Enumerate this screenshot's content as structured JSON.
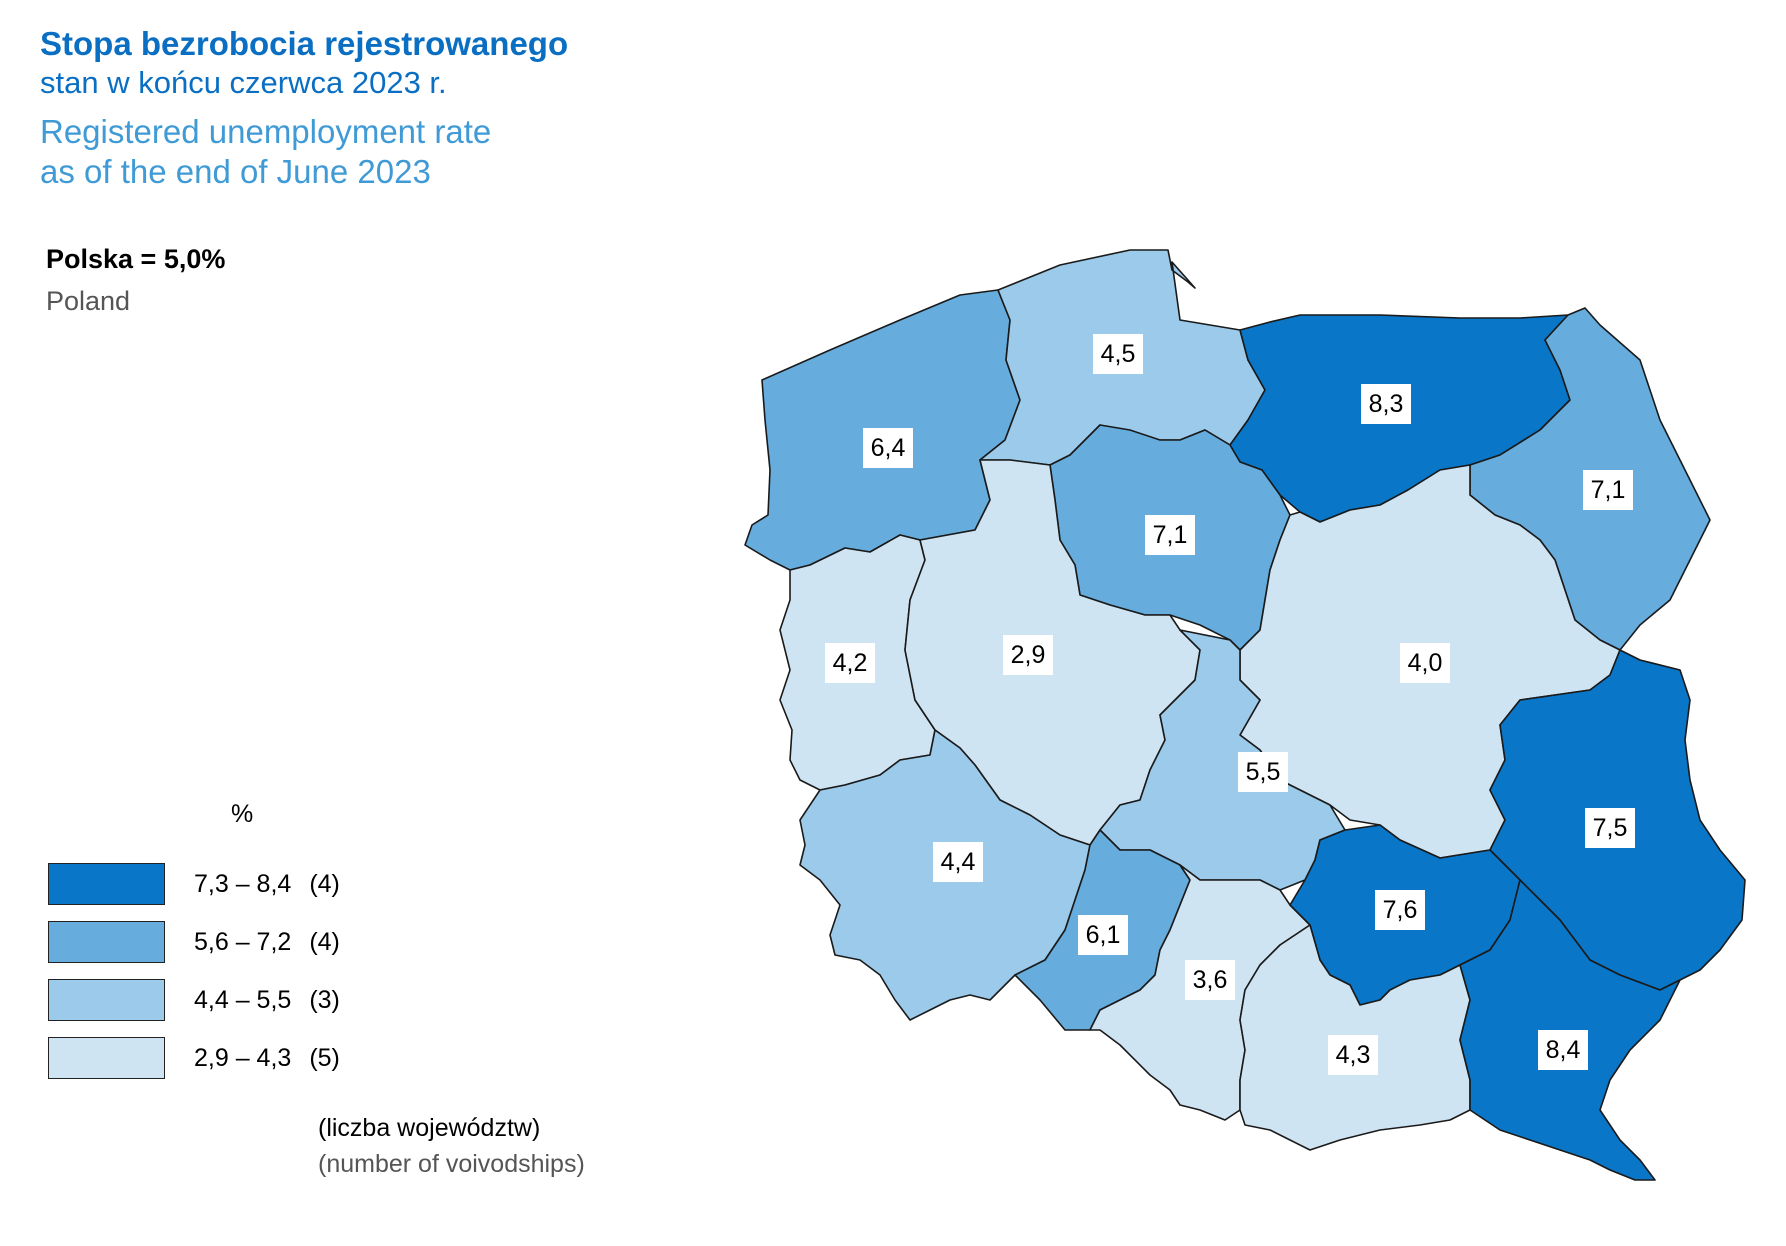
{
  "title": {
    "pl_line1": "Stopa bezrobocia rejestrowanego",
    "pl_line2": "stan w końcu czerwca 2023 r.",
    "en_line1": "Registered unemployment rate",
    "en_line2": "as of the end of June 2023"
  },
  "national": {
    "label_pl": "Polska = 5,0%",
    "label_en": "Poland"
  },
  "legend": {
    "unit": "%",
    "classes": [
      {
        "range": "7,3 – 8,4",
        "count": "(4)",
        "color": "#0a76c8"
      },
      {
        "range": "5,6 – 7,2",
        "count": "(4)",
        "color": "#66acdd"
      },
      {
        "range": "4,4 – 5,5",
        "count": "(3)",
        "color": "#9ccaea"
      },
      {
        "range": "2,9 – 4,3",
        "count": "(5)",
        "color": "#cfe4f3"
      }
    ],
    "note_pl": "(liczba województw)",
    "note_en": "(number of voivodships)"
  },
  "regions": [
    {
      "value": "6,4",
      "class": 1
    },
    {
      "value": "4,5",
      "class": 2
    },
    {
      "value": "8,3",
      "class": 0
    },
    {
      "value": "7,1",
      "class": 1
    },
    {
      "value": "7,1",
      "class": 1
    },
    {
      "value": "4,2",
      "class": 3
    },
    {
      "value": "2,9",
      "class": 3
    },
    {
      "value": "4,0",
      "class": 3
    },
    {
      "value": "5,5",
      "class": 2
    },
    {
      "value": "7,5",
      "class": 0
    },
    {
      "value": "4,4",
      "class": 2
    },
    {
      "value": "6,1",
      "class": 1
    },
    {
      "value": "3,6",
      "class": 3
    },
    {
      "value": "7,6",
      "class": 0
    },
    {
      "value": "4,3",
      "class": 3
    },
    {
      "value": "8,4",
      "class": 0
    }
  ]
}
